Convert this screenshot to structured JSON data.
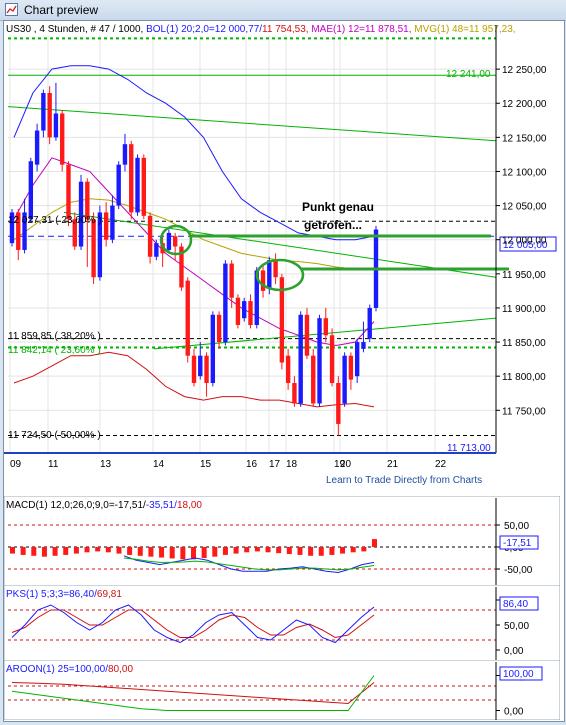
{
  "window": {
    "title": "Chart preview"
  },
  "colors": {
    "up": "#1a1aff",
    "down": "#ff1a1a",
    "green": "#00b400",
    "black": "#000000"
  },
  "main_header": {
    "symbol": "US30 , 4 Stunden, # 47 / 1000, ",
    "bol": "BOL(1) 20;2,0=12 000,77/",
    "bol2": "11 754,53, ",
    "mae": "MAE(1) 12=11 878,51, ",
    "mvg": "MVG(1) 48=11 957,23, "
  },
  "annotation": {
    "line1": "Punkt genau",
    "line2": "getrofen..."
  },
  "price_labels": {
    "lvl_12241": "12 241,00",
    "lvl_current": "12 005,00",
    "lvl_11713": "11 713,00",
    "fib_236": "12 027,31 ( 23,60% )",
    "fib_382": "11 859,85 ( 38,20% )",
    "fib_618": "11 842,14 ( 23,60% )",
    "fib_50": "11 724,50 ( 50,00% )"
  },
  "link": {
    "text": "Learn to Trade Directly from Charts"
  },
  "macd": {
    "header": "MACD(1) 12,0;26,0;9,0=-17,51/",
    "header2": "-35,51/",
    "header3": "18,00",
    "value_label": "-17,51"
  },
  "pks": {
    "header": "PKS(1) 5;3;3=86,40/",
    "header2": "69,81",
    "value_label": "86,40"
  },
  "aroon": {
    "header": "AROON(1) 25=100,00/",
    "header2": "80,00",
    "value_label": "100,00"
  },
  "chart_data": [
    {
      "type": "candlestick",
      "title": "US30 , 4 Stunden",
      "x_tick_labels": [
        "09",
        "11",
        "13",
        "14",
        "15",
        "16",
        "17",
        "18",
        "19",
        "20",
        "21",
        "22"
      ],
      "y_tick_labels": [
        "12 250,00",
        "12 200,00",
        "12 150,00",
        "12 100,00",
        "12 050,00",
        "12 000,00",
        "11 950,00",
        "11 900,00",
        "11 850,00",
        "11 800,00",
        "11 750,00"
      ],
      "ylim": [
        11705,
        12300
      ],
      "horizontal_levels": [
        12241,
        12005,
        11713
      ],
      "candles": [
        {
          "open": 11995,
          "close": 12040,
          "high": 12045,
          "low": 11990
        },
        {
          "open": 12040,
          "close": 11985,
          "high": 12045,
          "low": 11970
        },
        {
          "open": 11985,
          "close": 12040,
          "high": 12060,
          "low": 11980
        },
        {
          "open": 12030,
          "close": 12115,
          "high": 12120,
          "low": 12025
        },
        {
          "open": 12110,
          "close": 12160,
          "high": 12170,
          "low": 12100
        },
        {
          "open": 12160,
          "close": 12215,
          "high": 12220,
          "low": 12150
        },
        {
          "open": 12215,
          "close": 12150,
          "high": 12225,
          "low": 12140
        },
        {
          "open": 12150,
          "close": 12185,
          "high": 12230,
          "low": 12145
        },
        {
          "open": 12185,
          "close": 12110,
          "high": 12190,
          "low": 12100
        },
        {
          "open": 12110,
          "close": 12030,
          "high": 12115,
          "low": 12020
        },
        {
          "open": 12030,
          "close": 11990,
          "high": 12040,
          "low": 11985
        },
        {
          "open": 11990,
          "close": 12085,
          "high": 12095,
          "low": 11985
        },
        {
          "open": 12085,
          "close": 12030,
          "high": 12090,
          "low": 11960
        },
        {
          "open": 12030,
          "close": 11945,
          "high": 12040,
          "low": 11935
        },
        {
          "open": 11945,
          "close": 12040,
          "high": 12050,
          "low": 11940
        },
        {
          "open": 12040,
          "close": 12000,
          "high": 12055,
          "low": 11990
        },
        {
          "open": 12000,
          "close": 12050,
          "high": 12065,
          "low": 11995
        },
        {
          "open": 12050,
          "close": 12110,
          "high": 12115,
          "low": 12045
        },
        {
          "open": 12110,
          "close": 12140,
          "high": 12155,
          "low": 12100
        },
        {
          "open": 12140,
          "close": 12040,
          "high": 12145,
          "low": 12030
        },
        {
          "open": 12040,
          "close": 12120,
          "high": 12125,
          "low": 12035
        },
        {
          "open": 12120,
          "close": 12035,
          "high": 12125,
          "low": 12030
        },
        {
          "open": 12035,
          "close": 11975,
          "high": 12040,
          "low": 11965
        },
        {
          "open": 11975,
          "close": 11995,
          "high": 12000,
          "low": 11970
        },
        {
          "open": 11995,
          "close": 11980,
          "high": 12005,
          "low": 11960
        },
        {
          "open": 11985,
          "close": 12010,
          "high": 12015,
          "low": 11980
        },
        {
          "open": 12005,
          "close": 11990,
          "high": 12010,
          "low": 11970
        },
        {
          "open": 11990,
          "close": 11930,
          "high": 11995,
          "low": 11925
        },
        {
          "open": 11940,
          "close": 11830,
          "high": 11945,
          "low": 11820
        },
        {
          "open": 11830,
          "close": 11790,
          "high": 11840,
          "low": 11785
        },
        {
          "open": 11800,
          "close": 11830,
          "high": 11850,
          "low": 11795
        },
        {
          "open": 11830,
          "close": 11790,
          "high": 11835,
          "low": 11770
        },
        {
          "open": 11790,
          "close": 11890,
          "high": 11895,
          "low": 11785
        },
        {
          "open": 11890,
          "close": 11850,
          "high": 11895,
          "low": 11840
        },
        {
          "open": 11850,
          "close": 11965,
          "high": 11970,
          "low": 11845
        },
        {
          "open": 11965,
          "close": 11915,
          "high": 11970,
          "low": 11900
        },
        {
          "open": 11915,
          "close": 11875,
          "high": 11920,
          "low": 11870
        },
        {
          "open": 11885,
          "close": 11910,
          "high": 11915,
          "low": 11880
        },
        {
          "open": 11910,
          "close": 11875,
          "high": 11920,
          "low": 11870
        },
        {
          "open": 11875,
          "close": 11955,
          "high": 11960,
          "low": 11870
        },
        {
          "open": 11955,
          "close": 11925,
          "high": 11965,
          "low": 11915
        },
        {
          "open": 11930,
          "close": 11970,
          "high": 11975,
          "low": 11920
        },
        {
          "open": 11970,
          "close": 11945,
          "high": 11980,
          "low": 11935
        },
        {
          "open": 11945,
          "close": 11820,
          "high": 11950,
          "low": 11810
        },
        {
          "open": 11830,
          "close": 11790,
          "high": 11840,
          "low": 11780
        },
        {
          "open": 11790,
          "close": 11760,
          "high": 11800,
          "low": 11755
        },
        {
          "open": 11760,
          "close": 11890,
          "high": 11895,
          "low": 11755
        },
        {
          "open": 11890,
          "close": 11830,
          "high": 11900,
          "low": 11825
        },
        {
          "open": 11830,
          "close": 11760,
          "high": 11840,
          "low": 11755
        },
        {
          "open": 11760,
          "close": 11885,
          "high": 11890,
          "low": 11755
        },
        {
          "open": 11885,
          "close": 11860,
          "high": 11900,
          "low": 11850
        },
        {
          "open": 11860,
          "close": 11790,
          "high": 11870,
          "low": 11785
        },
        {
          "open": 11790,
          "close": 11730,
          "high": 11800,
          "low": 11713
        },
        {
          "open": 11760,
          "close": 11830,
          "high": 11835,
          "low": 11755
        },
        {
          "open": 11830,
          "close": 11795,
          "high": 11835,
          "low": 11780
        },
        {
          "open": 11800,
          "close": 11850,
          "high": 11855,
          "low": 11790
        },
        {
          "open": 11840,
          "close": 11850,
          "high": 11880,
          "low": 11835
        },
        {
          "open": 11855,
          "close": 11900,
          "high": 11905,
          "low": 11850
        },
        {
          "open": 11900,
          "close": 12015,
          "high": 12020,
          "low": 11895
        }
      ],
      "bollinger_upper": [
        12150,
        12215,
        12250,
        12255,
        12255,
        12250,
        12235,
        12215,
        12200,
        12180,
        12150,
        12100,
        12060,
        12040,
        12025,
        12010,
        12005,
        12000,
        12000,
        12005
      ],
      "bollinger_lower": [
        11790,
        11800,
        11815,
        11830,
        11830,
        11835,
        11830,
        11810,
        11785,
        11770,
        11765,
        11770,
        11770,
        11765,
        11765,
        11760,
        11755,
        11758,
        11760,
        11755
      ],
      "mae": [
        12030,
        12080,
        12120,
        12110,
        12100,
        12070,
        12040,
        12010,
        11980,
        11960,
        11940,
        11920,
        11900,
        11885,
        11870,
        11860,
        11850,
        11845,
        11850,
        11880
      ],
      "mvg": [
        12000,
        12020,
        12040,
        12055,
        12060,
        12058,
        12050,
        12040,
        12030,
        12015,
        12000,
        11990,
        11980,
        11975,
        11970,
        11968,
        11965,
        11960,
        11957,
        11957
      ]
    },
    {
      "type": "bar",
      "title": "MACD(1) 12,0;26,0;9,0",
      "y_tick_labels": [
        "50,00",
        "0,00",
        "-50,00"
      ],
      "ylim": [
        -75,
        75
      ],
      "values": [
        -15,
        -18,
        -20,
        -22,
        -20,
        -18,
        -15,
        -12,
        -10,
        -12,
        -15,
        -18,
        -20,
        -22,
        -24,
        -26,
        -28,
        -28,
        -25,
        -22,
        -18,
        -15,
        -12,
        -10,
        -12,
        -14,
        -16,
        -18,
        -20,
        -20,
        -18,
        -15,
        -12,
        -10,
        18
      ],
      "macd_line": [
        -20,
        -30,
        -35,
        -40,
        -35,
        -30,
        -25,
        -30,
        -40,
        -50,
        -55,
        -55,
        -55,
        -50,
        -48,
        -45,
        -50,
        -55,
        -58,
        -50,
        -40,
        -35
      ],
      "signal_line": [
        -25,
        -28,
        -32,
        -35,
        -35,
        -34,
        -32,
        -34,
        -38,
        -42,
        -46,
        -50,
        -52,
        -52,
        -50,
        -48,
        -48,
        -50,
        -52,
        -50,
        -46,
        -42
      ]
    },
    {
      "type": "line",
      "title": "PKS(1) 5;3;3",
      "y_tick_labels": [
        "100,00",
        "50,00",
        "0,00"
      ],
      "ylim": [
        -10,
        110
      ],
      "series": [
        {
          "name": "86,40",
          "values": [
            25,
            50,
            80,
            90,
            75,
            55,
            40,
            55,
            80,
            90,
            70,
            40,
            25,
            15,
            30,
            55,
            70,
            75,
            50,
            25,
            20,
            40,
            60,
            50,
            25,
            15,
            40,
            65,
            86
          ]
        },
        {
          "name": "69,81",
          "values": [
            35,
            45,
            65,
            80,
            80,
            65,
            50,
            50,
            65,
            80,
            80,
            60,
            40,
            25,
            25,
            40,
            60,
            70,
            65,
            45,
            30,
            30,
            45,
            52,
            40,
            25,
            30,
            50,
            70
          ]
        }
      ]
    },
    {
      "type": "line",
      "title": "AROON(1) 25",
      "y_tick_labels": [
        "100,00",
        "0,00"
      ],
      "ylim": [
        -10,
        110
      ],
      "series": [
        {
          "name": "100,00",
          "values": [
            55,
            45,
            35,
            25,
            15,
            5,
            0,
            0,
            0,
            0,
            0,
            0,
            0,
            0,
            100
          ]
        },
        {
          "name": "80,00",
          "values": [
            80,
            78,
            75,
            70,
            65,
            60,
            55,
            50,
            45,
            40,
            35,
            30,
            25,
            20,
            80
          ]
        }
      ]
    }
  ]
}
